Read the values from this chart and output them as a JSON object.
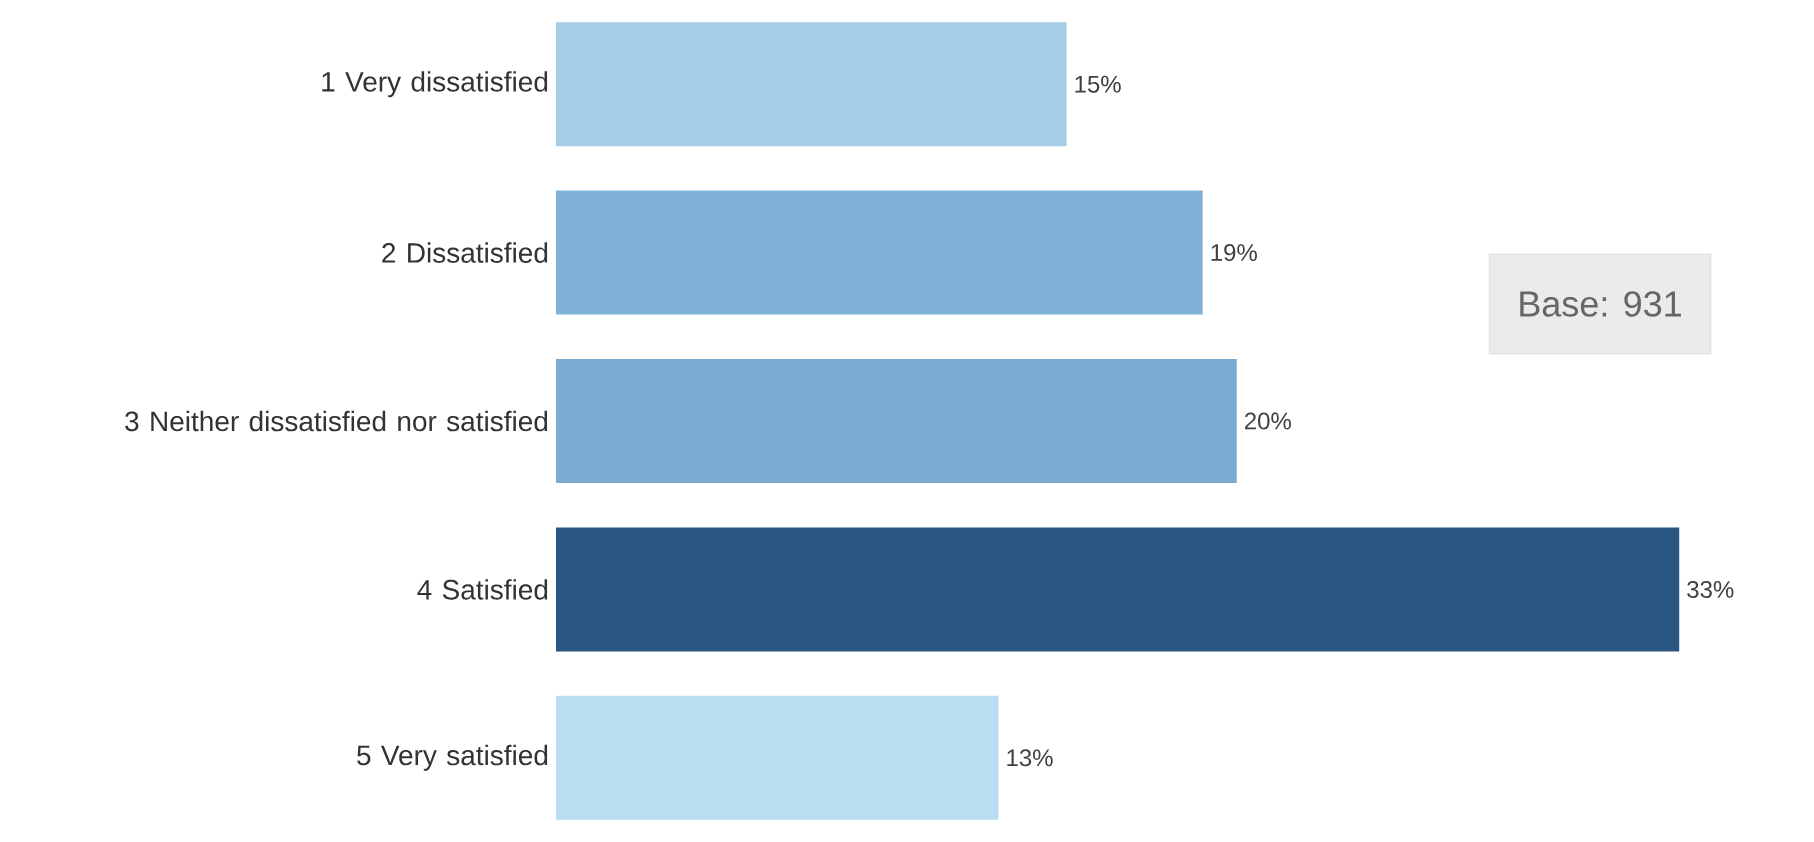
{
  "chart_data": {
    "type": "bar",
    "orientation": "horizontal",
    "categories": [
      "1 Very dissatisfied",
      "2 Dissatisfied",
      "3 Neither dissatisfied nor satisfied",
      "4 Satisfied",
      "5 Very satisfied"
    ],
    "values": [
      15,
      19,
      20,
      33,
      13
    ],
    "value_labels": [
      "15%",
      "19%",
      "20%",
      "33%",
      "13%"
    ],
    "colors": [
      "#a6cde8",
      "#80b1d6",
      "#78aad2",
      "#2a5783",
      "#b9ddf1"
    ],
    "annotations": [
      "Base:  931"
    ]
  }
}
